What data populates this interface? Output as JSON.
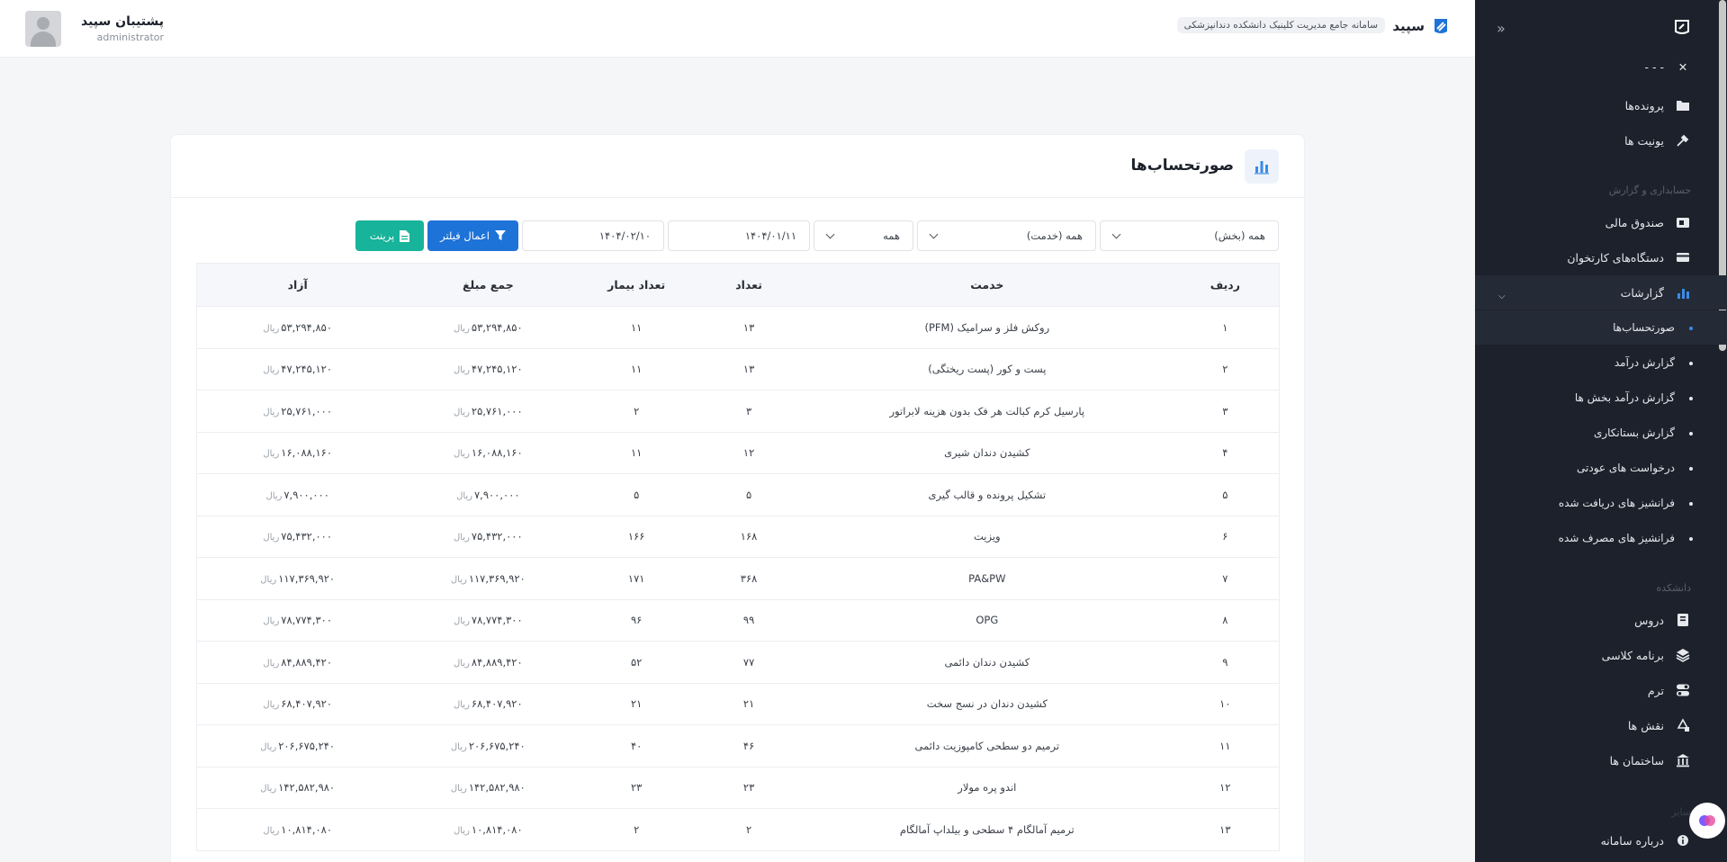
{
  "header": {
    "brand_name": "سپید",
    "brand_subtitle": "سامانه جامع مدیریت کلینیک دانشکده دندانپزشکی",
    "user_name": "پشتیبان سپید",
    "user_role": "administrator"
  },
  "sidebar": {
    "top_partial": "- - -",
    "items": [
      {
        "label": "پرونده‌ها",
        "icon": "folder-icon"
      },
      {
        "label": "یونیت ها",
        "icon": "dental-tool-icon"
      }
    ],
    "section_accounting": "حسابداری و گزارش",
    "accounting_items": [
      {
        "label": "صندوق مالی",
        "icon": "cash-register-icon"
      },
      {
        "label": "دستگاه‌های کارتخوان",
        "icon": "card-reader-icon"
      },
      {
        "label": "گزارشات",
        "icon": "chart-icon"
      }
    ],
    "report_sub_items": [
      {
        "label": "صورتحساب‌ها"
      },
      {
        "label": "گزارش درآمد"
      },
      {
        "label": "گزارش درآمد بخش ها"
      },
      {
        "label": "گزارش بستانکاری"
      },
      {
        "label": "درخواست های عودتی"
      },
      {
        "label": "فرانشیز های دریافت شده"
      },
      {
        "label": "فرانشیز های مصرف شده"
      }
    ],
    "section_faculty": "دانشکده",
    "faculty_items": [
      {
        "label": "دروس",
        "icon": "book-icon"
      },
      {
        "label": "برنامه کلاسی",
        "icon": "layers-icon"
      },
      {
        "label": "ترم",
        "icon": "toggle-icon"
      },
      {
        "label": "نقش ها",
        "icon": "shapes-icon"
      },
      {
        "label": "ساختمان ها",
        "icon": "bank-icon"
      }
    ],
    "section_other": "سایر",
    "about_label": "درباره سامانه"
  },
  "page": {
    "title": "صورتحساب‌ها"
  },
  "filters": {
    "section": "همه (بخش)",
    "service": "همه (خدمت)",
    "type": "همه",
    "date_from": "۱۴۰۴/۰۱/۱۱",
    "date_to": "۱۴۰۴/۰۲/۱۰",
    "apply_label": "اعمال فیلتر",
    "print_label": "پرینت"
  },
  "table": {
    "headers": [
      "ردیف",
      "خدمت",
      "تعداد",
      "تعداد بیمار",
      "جمع مبلغ",
      "آزاد"
    ],
    "currency": "ریال",
    "rows": [
      {
        "n": "۱",
        "service": "روکش فلز و سرامیک (PFM)",
        "count": "۱۳",
        "patients": "۱۱",
        "sum": "۵۳,۲۹۴,۸۵۰",
        "free": "۵۳,۲۹۴,۸۵۰"
      },
      {
        "n": "۲",
        "service": "پست و کور (پست ریختگی)",
        "count": "۱۳",
        "patients": "۱۱",
        "sum": "۴۷,۲۴۵,۱۲۰",
        "free": "۴۷,۲۴۵,۱۲۰"
      },
      {
        "n": "۳",
        "service": "پارسیل کرم کبالت هر فک بدون هزینه لابراتور",
        "count": "۳",
        "patients": "۲",
        "sum": "۲۵,۷۶۱,۰۰۰",
        "free": "۲۵,۷۶۱,۰۰۰"
      },
      {
        "n": "۴",
        "service": "کشیدن دندان شیری",
        "count": "۱۲",
        "patients": "۱۱",
        "sum": "۱۶,۰۸۸,۱۶۰",
        "free": "۱۶,۰۸۸,۱۶۰"
      },
      {
        "n": "۵",
        "service": "تشکیل پرونده و قالب گیری",
        "count": "۵",
        "patients": "۵",
        "sum": "۷,۹۰۰,۰۰۰",
        "free": "۷,۹۰۰,۰۰۰"
      },
      {
        "n": "۶",
        "service": "ویزیت",
        "count": "۱۶۸",
        "patients": "۱۶۶",
        "sum": "۷۵,۴۳۲,۰۰۰",
        "free": "۷۵,۴۳۲,۰۰۰"
      },
      {
        "n": "۷",
        "service": "PA&PW",
        "count": "۳۶۸",
        "patients": "۱۷۱",
        "sum": "۱۱۷,۳۶۹,۹۲۰",
        "free": "۱۱۷,۳۶۹,۹۲۰"
      },
      {
        "n": "۸",
        "service": "OPG",
        "count": "۹۹",
        "patients": "۹۶",
        "sum": "۷۸,۷۷۴,۳۰۰",
        "free": "۷۸,۷۷۴,۳۰۰"
      },
      {
        "n": "۹",
        "service": "کشیدن دندان دائمی",
        "count": "۷۷",
        "patients": "۵۲",
        "sum": "۸۴,۸۸۹,۴۲۰",
        "free": "۸۴,۸۸۹,۴۲۰"
      },
      {
        "n": "۱۰",
        "service": "کشیدن دندان در نسج سخت",
        "count": "۲۱",
        "patients": "۲۱",
        "sum": "۶۸,۴۰۷,۹۲۰",
        "free": "۶۸,۴۰۷,۹۲۰"
      },
      {
        "n": "۱۱",
        "service": "ترمیم دو سطحی کامپوزیت دائمی",
        "count": "۴۶",
        "patients": "۴۰",
        "sum": "۲۰۶,۶۷۵,۲۴۰",
        "free": "۲۰۶,۶۷۵,۲۴۰"
      },
      {
        "n": "۱۲",
        "service": "اندو پره مولار",
        "count": "۲۳",
        "patients": "۲۳",
        "sum": "۱۴۲,۵۸۲,۹۸۰",
        "free": "۱۴۲,۵۸۲,۹۸۰"
      },
      {
        "n": "۱۳",
        "service": "ترمیم آمالگام ۴ سطحی و بیلداپ آمالگام",
        "count": "۲",
        "patients": "۲",
        "sum": "۱۰,۸۱۴,۰۸۰",
        "free": "۱۰,۸۱۴,۰۸۰"
      }
    ]
  },
  "colors": {
    "sidebar_bg": "#1c212b",
    "accent_blue": "#1e73d8",
    "accent_teal": "#17b39a"
  }
}
